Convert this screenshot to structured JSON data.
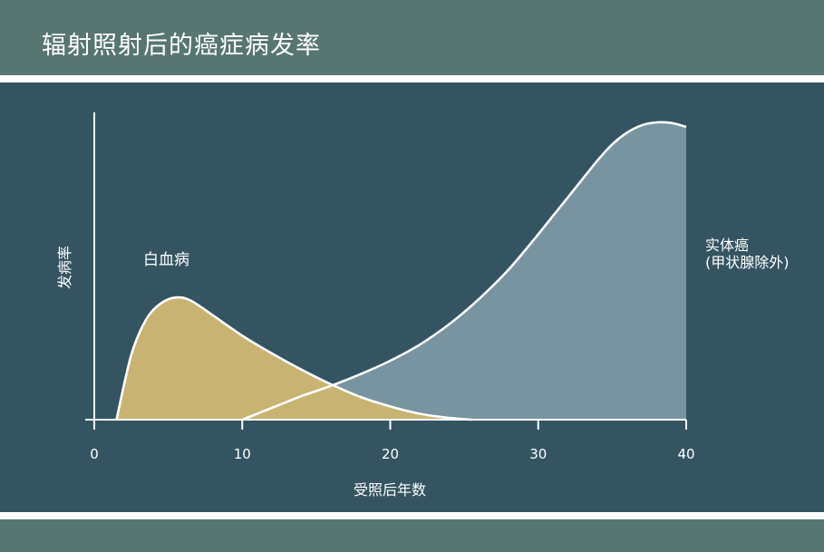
{
  "page": {
    "title": "辐射照射后的癌症病发率"
  },
  "colors": {
    "title_band": "#577571",
    "chart_background": "#345462",
    "leukemia_fill": "#c8b372",
    "solid_cancer_fill": "#7794a0",
    "axis": "#ffffff"
  },
  "chart_data": {
    "type": "area",
    "title": "辐射照射后的癌症病发率",
    "xlabel": "受照后年数",
    "ylabel": "发病率",
    "xlim": [
      0,
      40
    ],
    "ylim": [
      0,
      105
    ],
    "xticks": [
      0,
      10,
      20,
      30,
      40
    ],
    "yticks": [],
    "grid": false,
    "series": [
      {
        "name": "白血病",
        "x": [
          1.5,
          2.5,
          3.5,
          4.5,
          5.5,
          6.5,
          8,
          10,
          12,
          14,
          16,
          18,
          20,
          22,
          24,
          25.5
        ],
        "y": [
          0,
          22,
          34,
          39.5,
          41.5,
          40.5,
          35.5,
          28.5,
          22.5,
          17,
          12,
          7.7,
          4.5,
          2,
          0.6,
          0
        ]
      },
      {
        "name": "实体癌\n(甲状腺除外)",
        "x": [
          10,
          12,
          14,
          16,
          18,
          20,
          22,
          24,
          26,
          28,
          30,
          32,
          34,
          35,
          36,
          37,
          38,
          39,
          40
        ],
        "y": [
          0,
          4,
          8,
          11.5,
          15.5,
          20,
          25.5,
          32.5,
          41,
          51,
          63,
          75.5,
          88,
          93.5,
          97.5,
          100,
          101,
          100.8,
          99.5
        ]
      }
    ]
  }
}
